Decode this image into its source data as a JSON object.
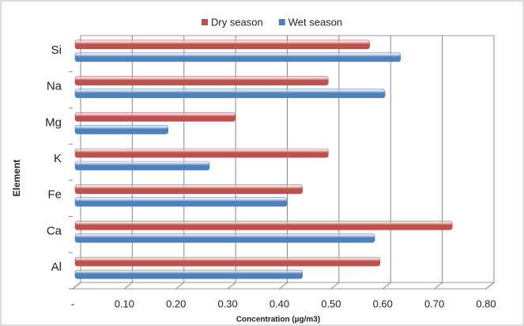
{
  "chart_data": {
    "type": "hbar",
    "xlabel": "Concentration (µg/m3)",
    "ylabel": "Element",
    "categories": [
      "Al",
      "Ca",
      "Fe",
      "K",
      "Mg",
      "Na",
      "Si"
    ],
    "series": [
      {
        "name": "Dry season",
        "color": "#c0504d",
        "values": [
          0.59,
          0.73,
          0.44,
          0.49,
          0.31,
          0.49,
          0.57
        ]
      },
      {
        "name": "Wet season",
        "color": "#4f81bd",
        "values": [
          0.44,
          0.58,
          0.41,
          0.26,
          0.18,
          0.6,
          0.63
        ]
      }
    ],
    "xlim": [
      0,
      0.8
    ],
    "xticks": [
      {
        "value": 0,
        "label": "-"
      },
      {
        "value": 0.1,
        "label": "0.10"
      },
      {
        "value": 0.2,
        "label": "0.20"
      },
      {
        "value": 0.3,
        "label": "0.30"
      },
      {
        "value": 0.4,
        "label": "0.40"
      },
      {
        "value": 0.5,
        "label": "0.50"
      },
      {
        "value": 0.6,
        "label": "0.60"
      },
      {
        "value": 0.7,
        "label": "0.70"
      },
      {
        "value": 0.8,
        "label": "0.80"
      }
    ],
    "grid": true,
    "legend": "top"
  }
}
